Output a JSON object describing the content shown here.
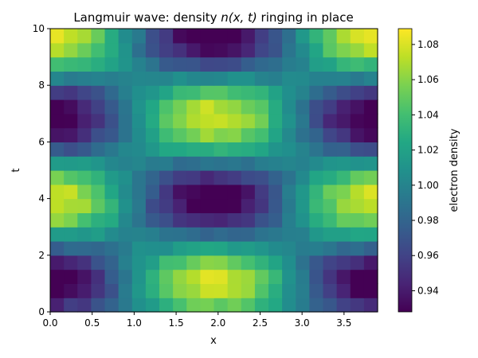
{
  "chart_data": {
    "type": "heatmap",
    "title_prefix": "Langmuir wave: density ",
    "title_math": "n(x, t)",
    "title_suffix": " ringing in place",
    "xlabel": "x",
    "ylabel": "t",
    "colorbar_label": "electron density",
    "xlim": [
      0,
      3.9
    ],
    "ylim": [
      0,
      10
    ],
    "x_ticks": [
      "0.0",
      "0.5",
      "1.0",
      "1.5",
      "2.0",
      "2.5",
      "3.0",
      "3.5"
    ],
    "y_ticks": [
      "0",
      "2",
      "4",
      "6",
      "8",
      "10"
    ],
    "colorbar_ticks": [
      "0.94",
      "0.96",
      "0.98",
      "1.00",
      "1.02",
      "1.04",
      "1.06",
      "1.08"
    ],
    "value_range": [
      0.928,
      1.089
    ],
    "colormap": "viridis",
    "grid": false,
    "nx": 24,
    "nt": 20,
    "base_density": 1.0,
    "amplitude": 0.08,
    "wavelength": 3.9,
    "period": 5.8,
    "phase_x": 1.95,
    "phase_t": 1.05
  }
}
